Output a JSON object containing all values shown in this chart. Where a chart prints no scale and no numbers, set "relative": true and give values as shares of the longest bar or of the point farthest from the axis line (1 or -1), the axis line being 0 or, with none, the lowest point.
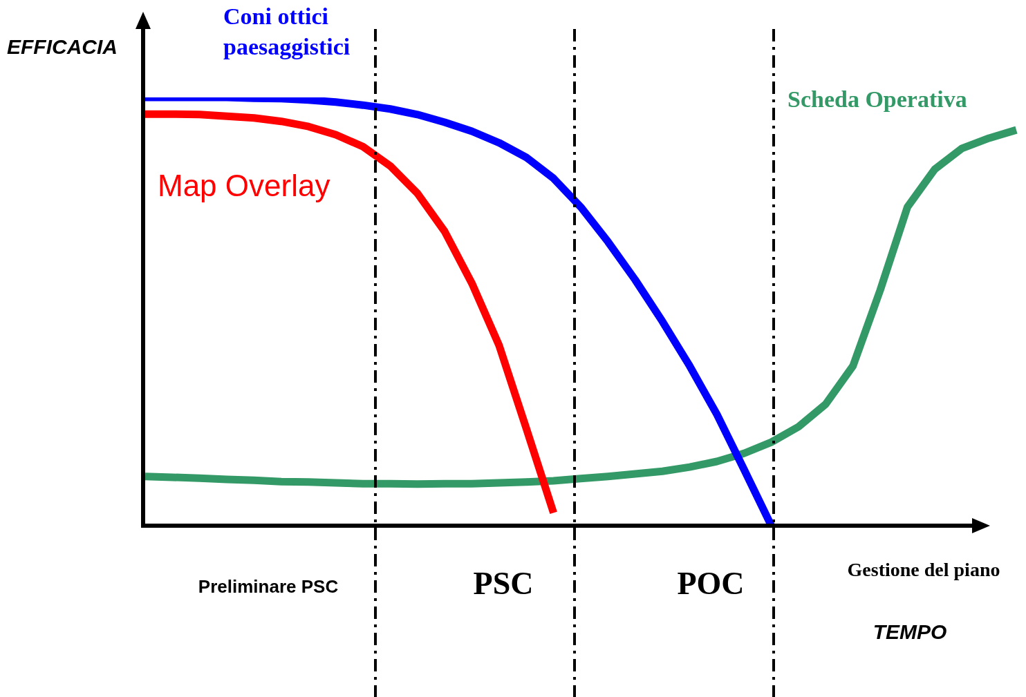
{
  "chart_data": {
    "type": "line",
    "relative": true,
    "xlabel": "TEMPO",
    "ylabel": "EFFICACIA",
    "tick_labels": false,
    "grid": false,
    "legend": false,
    "marker": "none",
    "line_style": "solid",
    "categories": [
      null,
      null,
      null,
      null,
      null,
      null,
      null,
      null,
      null,
      null,
      null,
      null,
      null,
      null,
      null,
      null,
      null,
      null,
      null,
      null,
      null,
      null,
      null,
      null,
      null,
      null,
      null,
      null,
      null,
      null,
      null,
      null,
      null
    ],
    "series": [
      {
        "name": "Coni ottici paesaggistici",
        "color": "#0000ff",
        "values": [
          1.0,
          1.0,
          1.0,
          1.0,
          0.998,
          0.997,
          0.994,
          0.989,
          0.982,
          0.973,
          0.96,
          0.942,
          0.921,
          0.894,
          0.86,
          0.811,
          0.744,
          0.663,
          0.574,
          0.477,
          0.373,
          0.26,
          0.131,
          0,
          null,
          null,
          null,
          null,
          null,
          null,
          null,
          null,
          null
        ]
      },
      {
        "name": "Map Overlay",
        "color": "#ff0000",
        "values": [
          0.961,
          0.961,
          0.96,
          0.956,
          0.952,
          0.944,
          0.932,
          0.913,
          0.885,
          0.84,
          0.776,
          0.687,
          0.566,
          0.421,
          0.227,
          0.03,
          null,
          null,
          null,
          null,
          null,
          null,
          null,
          null,
          null,
          null,
          null,
          null,
          null,
          null,
          null,
          null,
          null
        ]
      },
      {
        "name": "Scheda Operativa",
        "color": "#339966",
        "values": [
          0.115,
          0.113,
          0.111,
          0.108,
          0.106,
          0.103,
          0.102,
          0.1,
          0.098,
          0.098,
          0.097,
          0.098,
          0.098,
          0.1,
          0.102,
          0.105,
          0.11,
          0.115,
          0.121,
          0.127,
          0.137,
          0.15,
          0.169,
          0.195,
          0.231,
          0.284,
          0.373,
          0.55,
          0.744,
          0.832,
          0.881,
          0.905,
          0.924
        ]
      }
    ],
    "annotations": [
      "Preliminare PSC",
      "PSC",
      "POC",
      "Gestione del piano"
    ]
  }
}
